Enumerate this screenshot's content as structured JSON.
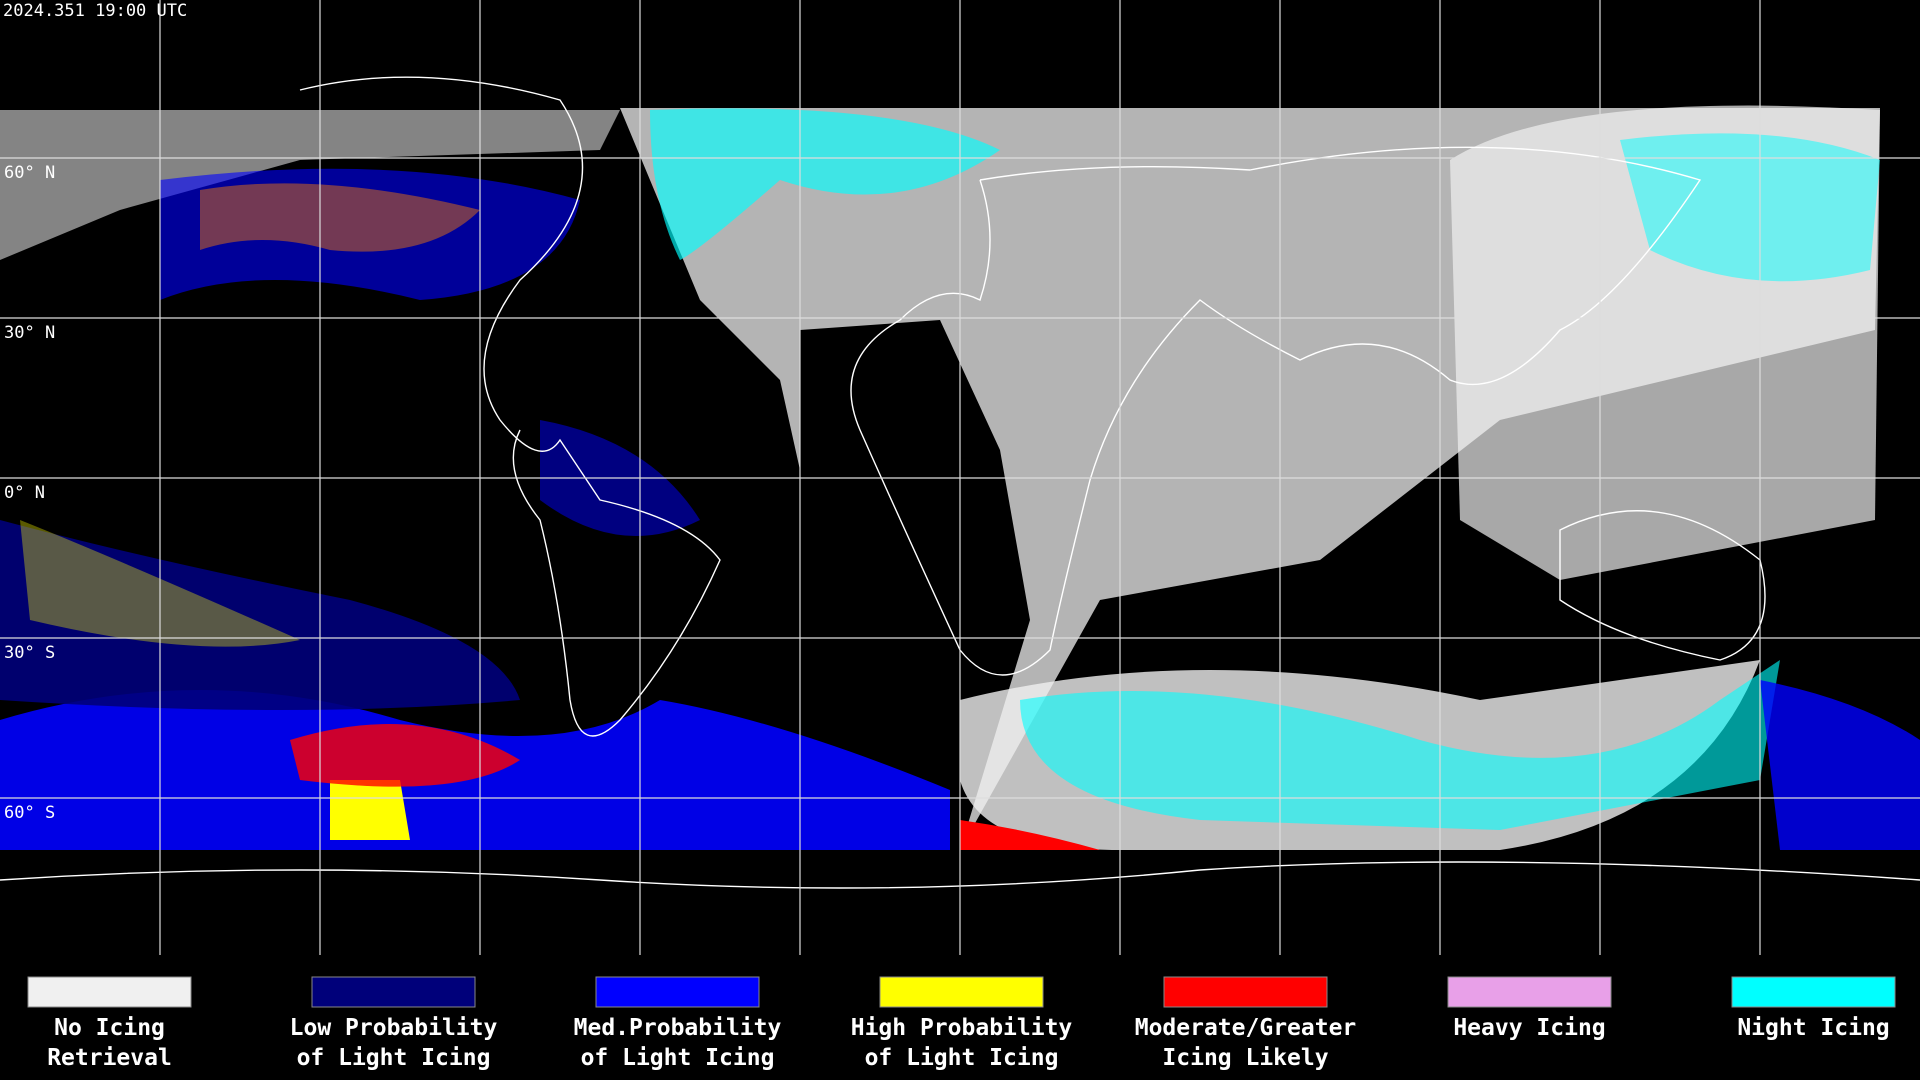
{
  "header": {
    "timestamp": "2024.351 19:00 UTC"
  },
  "map": {
    "latitude_labels": [
      "60° N",
      "30° N",
      "0° N",
      "30° S",
      "60° S"
    ]
  },
  "legend": {
    "items": [
      {
        "label": [
          "No Icing",
          "Retrieval"
        ],
        "color": "#f0f0f0"
      },
      {
        "label": [
          "Low Probability",
          "of Light Icing"
        ],
        "color": "#00007a"
      },
      {
        "label": [
          "Med.Probability",
          "of Light Icing"
        ],
        "color": "#0000ff"
      },
      {
        "label": [
          "High Probability",
          "of Light Icing"
        ],
        "color": "#ffff00"
      },
      {
        "label": [
          "Moderate/Greater",
          "Icing Likely"
        ],
        "color": "#ff0000"
      },
      {
        "label": [
          "Heavy Icing"
        ],
        "color": "#e8a0e8"
      },
      {
        "label": [
          "Night Icing"
        ],
        "color": "#00ffff"
      }
    ]
  }
}
